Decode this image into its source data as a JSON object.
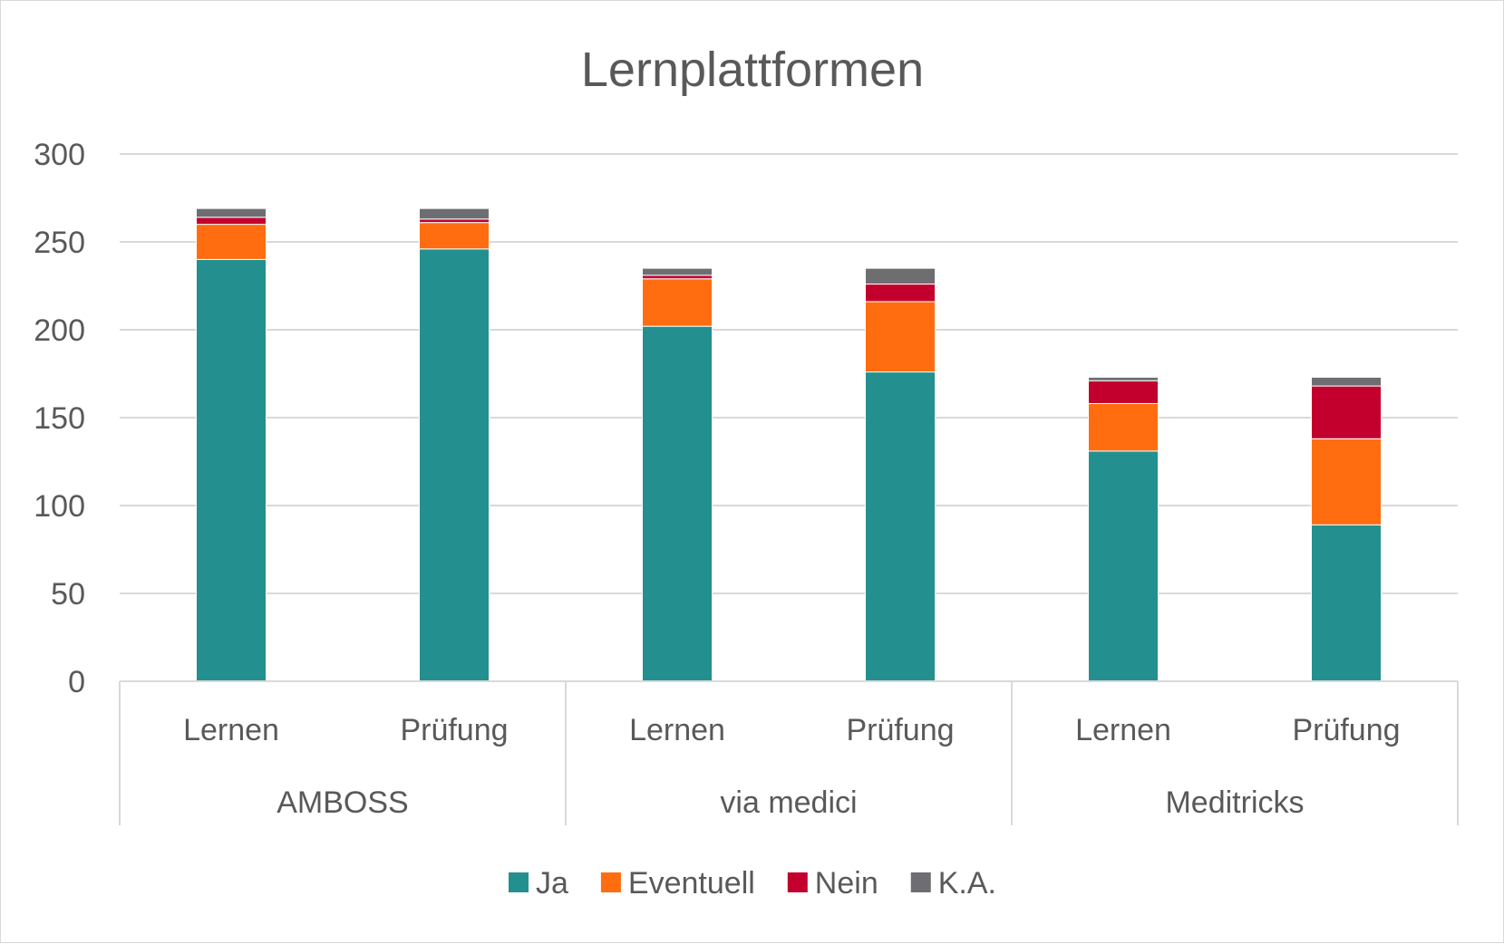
{
  "chart_data": {
    "type": "bar",
    "stacked": true,
    "title": "Lernplattformen",
    "xlabel": "",
    "ylabel": "",
    "ylim": [
      0,
      300
    ],
    "yticks": [
      0,
      50,
      100,
      150,
      200,
      250,
      300
    ],
    "grid": true,
    "legend_position": "bottom",
    "groups": [
      {
        "label": "AMBOSS",
        "categories": [
          "Lernen",
          "Prüfung"
        ]
      },
      {
        "label": "via medici",
        "categories": [
          "Lernen",
          "Prüfung"
        ]
      },
      {
        "label": "Meditricks",
        "categories": [
          "Lernen",
          "Prüfung"
        ]
      }
    ],
    "categories": [
      "Lernen",
      "Prüfung",
      "Lernen",
      "Prüfung",
      "Lernen",
      "Prüfung"
    ],
    "series": [
      {
        "name": "Ja",
        "color": "#23908f",
        "values": [
          240,
          246,
          202,
          176,
          131,
          89
        ]
      },
      {
        "name": "Eventuell",
        "color": "#ff6d10",
        "values": [
          20,
          15,
          27,
          40,
          27,
          49
        ]
      },
      {
        "name": "Nein",
        "color": "#c3002d",
        "values": [
          4,
          2,
          2,
          10,
          13,
          30
        ]
      },
      {
        "name": "K.A.",
        "color": "#6e6e72",
        "values": [
          5,
          6,
          4,
          9,
          2,
          5
        ]
      }
    ]
  }
}
